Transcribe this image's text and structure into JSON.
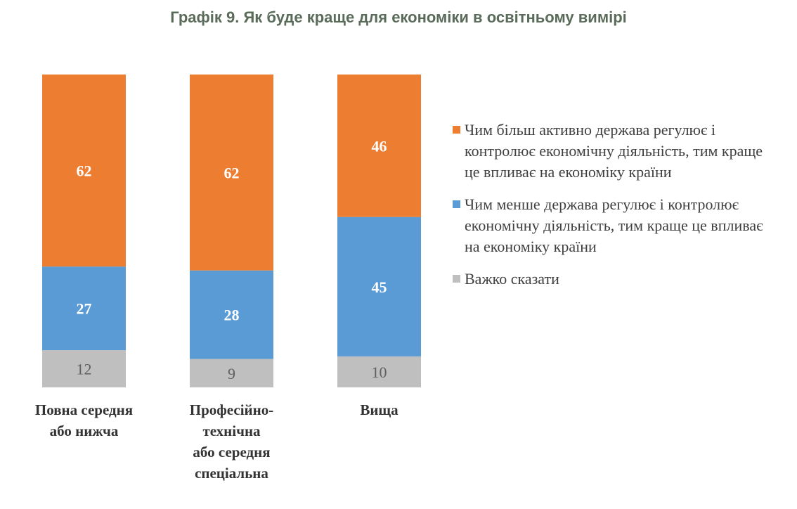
{
  "chart_data": {
    "type": "bar",
    "stacked": true,
    "title": "Графік 9. Як буде краще для економіки в освітньому вимірі",
    "categories": [
      "Повна середня\nабо нижча",
      "Професійно-\nтехнічна\nабо середня\nспеціальна",
      "Вища"
    ],
    "series": [
      {
        "name": "Чим більш активно держава регулює і контролює економічну діяльність, тим краще це впливає на економіку країни",
        "color": "#ED7D31",
        "values": [
          62,
          62,
          46
        ]
      },
      {
        "name": "Чим менше держава регулює і контролює економічну діяльність, тим краще це впливає на економіку країни",
        "color": "#5B9BD5",
        "values": [
          27,
          28,
          45
        ]
      },
      {
        "name": "Важко сказати",
        "color": "#BFBFBF",
        "values": [
          12,
          9,
          10
        ]
      }
    ],
    "legend_position": "right",
    "grid": false
  }
}
